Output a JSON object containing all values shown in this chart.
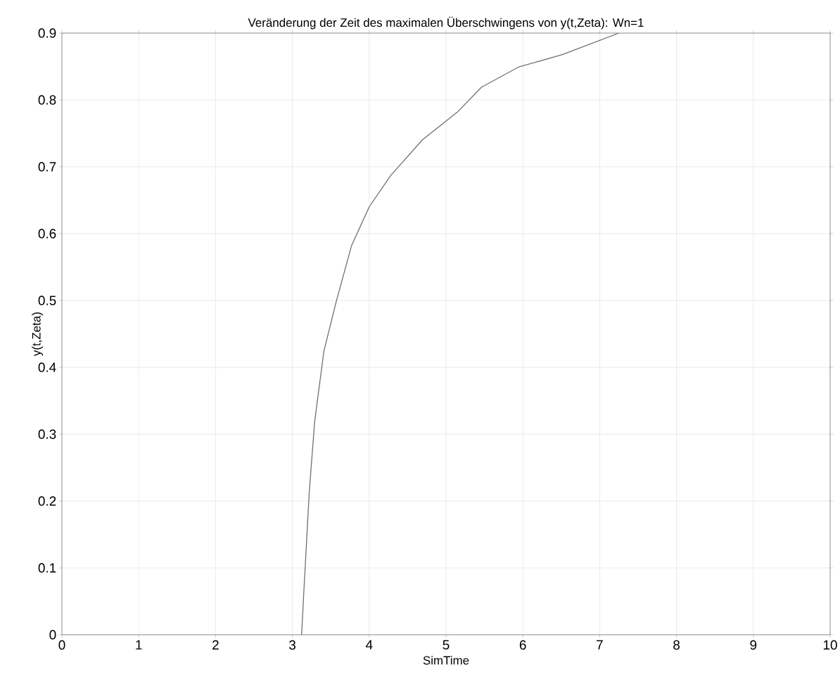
{
  "chart_data": {
    "type": "line",
    "title": "Veränderung der Zeit des maximalen Überschwingens von y(t,Zeta): Wn=1",
    "xlabel": "SimTime",
    "ylabel": "y(t,Zeta)",
    "series": [
      {
        "color": "#707070",
        "x": [
          3.12,
          3.15,
          3.22,
          3.29,
          3.41,
          3.57,
          3.77,
          4.0,
          4.28,
          4.69,
          5.15,
          5.46,
          5.94,
          6.52,
          7.25
        ],
        "values": [
          0,
          0.066,
          0.214,
          0.319,
          0.424,
          0.498,
          0.582,
          0.64,
          0.687,
          0.74,
          0.782,
          0.819,
          0.849,
          0.868,
          0.9
        ]
      }
    ],
    "xlim": [
      0,
      10
    ],
    "ylim": [
      0,
      0.9
    ],
    "xticks": [
      0,
      1,
      2,
      3,
      4,
      5,
      6,
      7,
      8,
      9,
      10
    ],
    "yticks": [
      0,
      0.1,
      0.2,
      0.3,
      0.4,
      0.5,
      0.6,
      0.7,
      0.8,
      0.9
    ],
    "grid": true
  }
}
